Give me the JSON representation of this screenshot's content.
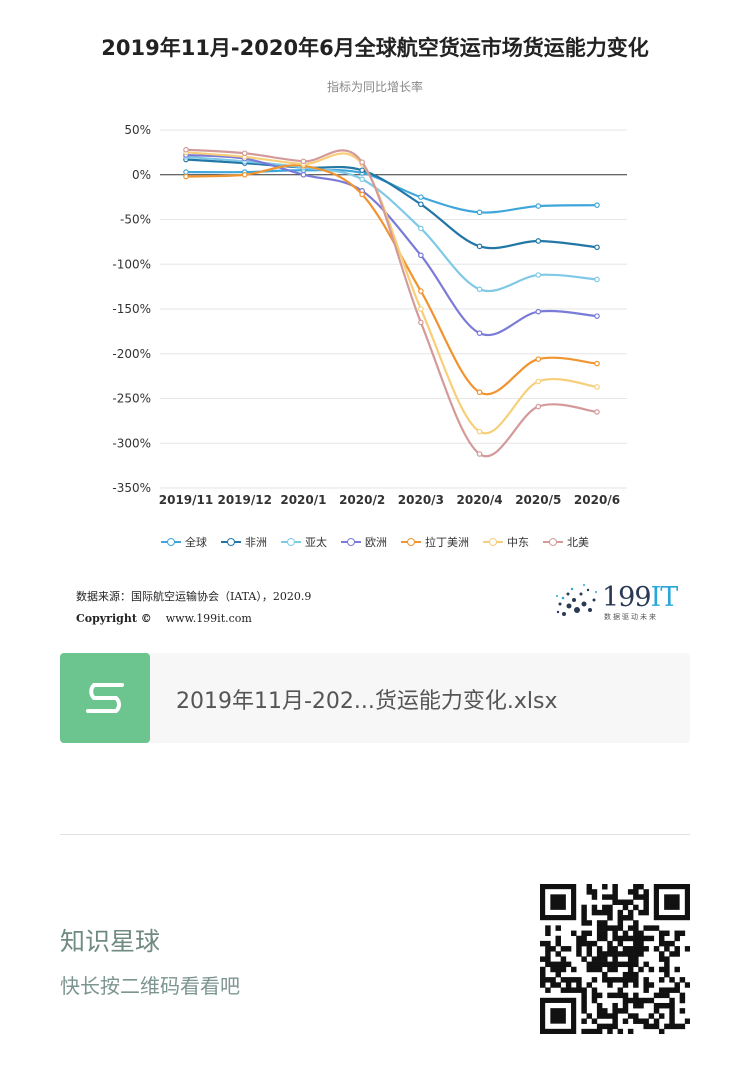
{
  "title": "2019年11月-2020年6月全球航空货运市场货运能力变化",
  "subtitle": "指标为同比增长率",
  "chart_data": {
    "type": "line",
    "title": "2019年11月-2020年6月全球航空货运市场货运能力变化",
    "subtitle": "指标为同比增长率",
    "categories": [
      "2019/11",
      "2019/12",
      "2020/1",
      "2020/2",
      "2020/3",
      "2020/4",
      "2020/5",
      "2020/6"
    ],
    "y_ticks": [
      "50%",
      "0%",
      "-50%",
      "-100%",
      "-150%",
      "-200%",
      "-250%",
      "-300%",
      "-350%"
    ],
    "ylim": [
      -350,
      50
    ],
    "grid": true,
    "legend_position": "bottom",
    "series": [
      {
        "name": "全球",
        "color": "#3ea6db",
        "values": [
          3,
          3,
          5,
          2,
          -25,
          -42,
          -35,
          -34
        ]
      },
      {
        "name": "非洲",
        "color": "#2277a6",
        "values": [
          17,
          13,
          8,
          5,
          -33,
          -80,
          -74,
          -81
        ]
      },
      {
        "name": "亚太",
        "color": "#7fc9e6",
        "values": [
          20,
          15,
          8,
          -5,
          -60,
          -128,
          -112,
          -117
        ]
      },
      {
        "name": "欧洲",
        "color": "#7a7ad8",
        "values": [
          22,
          18,
          0,
          -18,
          -90,
          -177,
          -153,
          -158
        ]
      },
      {
        "name": "拉丁美洲",
        "color": "#ef9430",
        "values": [
          -2,
          0,
          10,
          -22,
          -130,
          -243,
          -206,
          -211
        ]
      },
      {
        "name": "中东",
        "color": "#f7cf7a",
        "values": [
          25,
          20,
          12,
          12,
          -150,
          -287,
          -231,
          -237
        ]
      },
      {
        "name": "北美",
        "color": "#d49a9a",
        "values": [
          28,
          24,
          15,
          14,
          -165,
          -312,
          -259,
          -265
        ]
      }
    ]
  },
  "source": {
    "line1": "数据来源：国际航空运输协会（IATA），2020.9",
    "line2_label": "Copyright ©",
    "line2_url": "www.199it.com"
  },
  "logo": {
    "num": "199",
    "suffix": "IT",
    "tagline": "数据驱动未来"
  },
  "file": {
    "name": "2019年11月-202...货运能力变化.xlsx"
  },
  "footer": {
    "title": "知识星球",
    "subtitle": "快长按二维码看看吧"
  },
  "colors": {
    "file_icon": "#6cc58e",
    "zero_line": "#333333",
    "grid": "#e6e6e6"
  }
}
